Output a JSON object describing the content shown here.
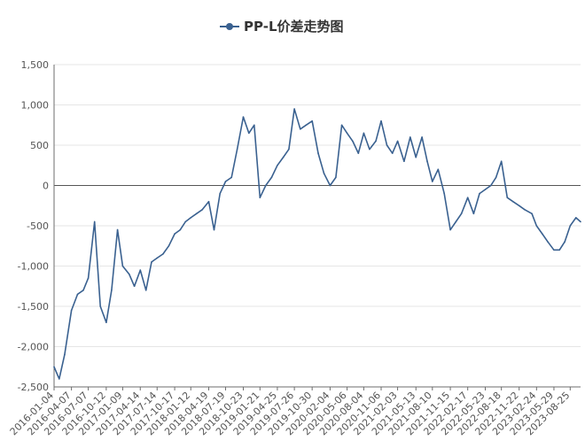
{
  "chart_data": {
    "type": "line",
    "legend": {
      "placement": "top-center",
      "label": "PP-L价差走势图"
    },
    "series": [
      {
        "name": "PP-L价差走势图",
        "color": "#3a6190",
        "x": [
          "2016-01-04",
          "2016-02-01",
          "2016-03-01",
          "2016-04-07",
          "2016-05-10",
          "2016-06-10",
          "2016-07-07",
          "2016-08-10",
          "2016-09-10",
          "2016-10-12",
          "2016-11-10",
          "2016-12-12",
          "2017-01-09",
          "2017-02-13",
          "2017-03-13",
          "2017-04-14",
          "2017-05-15",
          "2017-06-14",
          "2017-07-14",
          "2017-08-15",
          "2017-09-15",
          "2017-10-17",
          "2017-11-16",
          "2017-12-14",
          "2018-01-12",
          "2018-02-12",
          "2018-03-15",
          "2018-04-19",
          "2018-05-18",
          "2018-06-19",
          "2018-07-19",
          "2018-08-20",
          "2018-09-20",
          "2018-10-23",
          "2018-11-22",
          "2018-12-21",
          "2019-01-21",
          "2019-02-21",
          "2019-03-25",
          "2019-04-25",
          "2019-05-27",
          "2019-06-26",
          "2019-07-26",
          "2019-08-27",
          "2019-09-27",
          "2019-10-30",
          "2019-12-02",
          "2020-01-02",
          "2020-02-04",
          "2020-03-06",
          "2020-04-07",
          "2020-05-06",
          "2020-06-05",
          "2020-07-06",
          "2020-08-04",
          "2020-09-04",
          "2020-10-08",
          "2020-11-06",
          "2020-12-07",
          "2021-01-06",
          "2021-02-03",
          "2021-03-10",
          "2021-04-12",
          "2021-05-13",
          "2021-06-15",
          "2021-07-13",
          "2021-08-10",
          "2021-09-10",
          "2021-10-13",
          "2021-11-15",
          "2021-12-15",
          "2022-01-14",
          "2022-02-17",
          "2022-03-21",
          "2022-04-22",
          "2022-05-23",
          "2022-06-22",
          "2022-07-20",
          "2022-08-18",
          "2022-09-19",
          "2022-10-20",
          "2022-11-22",
          "2022-12-22",
          "2023-01-30",
          "2023-02-24",
          "2023-03-27",
          "2023-04-26",
          "2023-05-29",
          "2023-06-28",
          "2023-07-26",
          "2023-08-25",
          "2023-09-25",
          "2023-10-20"
        ],
        "values": [
          -2250,
          -2400,
          -2100,
          -1550,
          -1350,
          -1300,
          -1150,
          -450,
          -1500,
          -1700,
          -1300,
          -550,
          -1000,
          -1100,
          -1250,
          -1050,
          -1300,
          -950,
          -900,
          -850,
          -750,
          -600,
          -550,
          -450,
          -400,
          -350,
          -300,
          -200,
          -550,
          -100,
          50,
          100,
          450,
          850,
          650,
          750,
          -150,
          0,
          100,
          250,
          350,
          450,
          950,
          700,
          750,
          800,
          400,
          150,
          0,
          100,
          750,
          650,
          550,
          400,
          650,
          450,
          550,
          800,
          500,
          400,
          550,
          300,
          600,
          350,
          600,
          300,
          50,
          200,
          -100,
          -550,
          -450,
          -350,
          -150,
          -350,
          -100,
          -50,
          0,
          100,
          300,
          -150,
          -200,
          -250,
          -300,
          -350,
          -500,
          -600,
          -700,
          -800,
          -800,
          -700,
          -500,
          -400,
          -450
        ]
      }
    ],
    "y_axis": {
      "min": -2500,
      "max": 1500,
      "ticks": [
        -2500,
        -2000,
        -1500,
        -1000,
        -500,
        0,
        500,
        1000,
        1500
      ],
      "tick_labels": [
        "-2,500",
        "-2,000",
        "-1,500",
        "-1,000",
        "-500",
        "0",
        "500",
        "1,000",
        "1,500"
      ]
    },
    "x_axis": {
      "tick_labels": [
        "2016-01-04",
        "2016-04-07",
        "2016-07-07",
        "2016-10-12",
        "2017-01-09",
        "2017-04-14",
        "2017-07-14",
        "2017-10-17",
        "2018-01-12",
        "2018-04-19",
        "2018-07-19",
        "2018-10-23",
        "2019-01-21",
        "2019-04-25",
        "2019-07-26",
        "2019-10-30",
        "2020-02-04",
        "2020-05-06",
        "2020-08-04",
        "2020-11-06",
        "2021-02-03",
        "2021-05-13",
        "2021-08-10",
        "2021-11-15",
        "2022-02-17",
        "2022-05-23",
        "2022-08-18",
        "2022-11-22",
        "2023-02-24",
        "2023-05-29",
        "2023-08-25"
      ]
    },
    "grid": true
  }
}
